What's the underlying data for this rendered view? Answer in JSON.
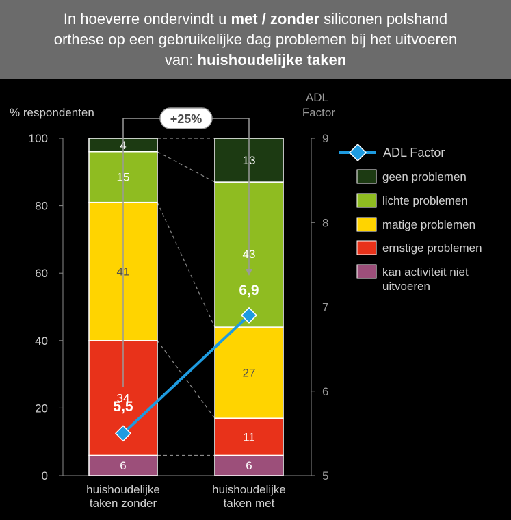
{
  "title": {
    "line1_pre": "In hoeverre ondervindt u ",
    "line1_bold": "met / zonder",
    "line1_post": " siliconen polshand",
    "line2": "orthese op een gebruikelijke dag problemen bij het uitvoeren",
    "line3_pre": "van: ",
    "line3_bold": "huishoudelijke taken"
  },
  "chart_data": {
    "type": "bar",
    "stacked": true,
    "ylabel": "% respondenten",
    "ylim": [
      0,
      100
    ],
    "yticks": [
      0,
      20,
      40,
      60,
      80,
      100
    ],
    "y2label_line1": "ADL",
    "y2label_line2": "Factor",
    "y2lim": [
      5,
      9
    ],
    "y2ticks": [
      5,
      6,
      7,
      8,
      9
    ],
    "categories": [
      [
        "huishoudelijke",
        "taken zonder"
      ],
      [
        "huishoudelijke",
        "taken met"
      ]
    ],
    "series": [
      {
        "name": "kan activiteit niet uitvoeren",
        "legend_lines": [
          "kan activiteit niet",
          "uitvoeren"
        ],
        "color": "#9c4f7a",
        "label_color": "#ffffff",
        "values": [
          6,
          6
        ]
      },
      {
        "name": "ernstige problemen",
        "legend_lines": [
          "ernstige problemen"
        ],
        "color": "#e8321a",
        "label_color": "#ffffff",
        "values": [
          34,
          11
        ]
      },
      {
        "name": "matige problemen",
        "legend_lines": [
          "matige problemen"
        ],
        "color": "#ffd400",
        "label_color": "#505050",
        "values": [
          41,
          27
        ]
      },
      {
        "name": "lichte problemen",
        "legend_lines": [
          "lichte problemen"
        ],
        "color": "#8fbc21",
        "label_color": "#ffffff",
        "values": [
          15,
          43
        ]
      },
      {
        "name": "geen problemen",
        "legend_lines": [
          "geen problemen"
        ],
        "color": "#1c3a12",
        "label_color": "#ffffff",
        "values": [
          4,
          13
        ]
      }
    ],
    "line_series": {
      "name": "ADL Factor",
      "color": "#1e9be0",
      "values": [
        5.5,
        6.9
      ],
      "labels": [
        "5,5",
        "6,9"
      ]
    },
    "annotation": "+25%"
  }
}
